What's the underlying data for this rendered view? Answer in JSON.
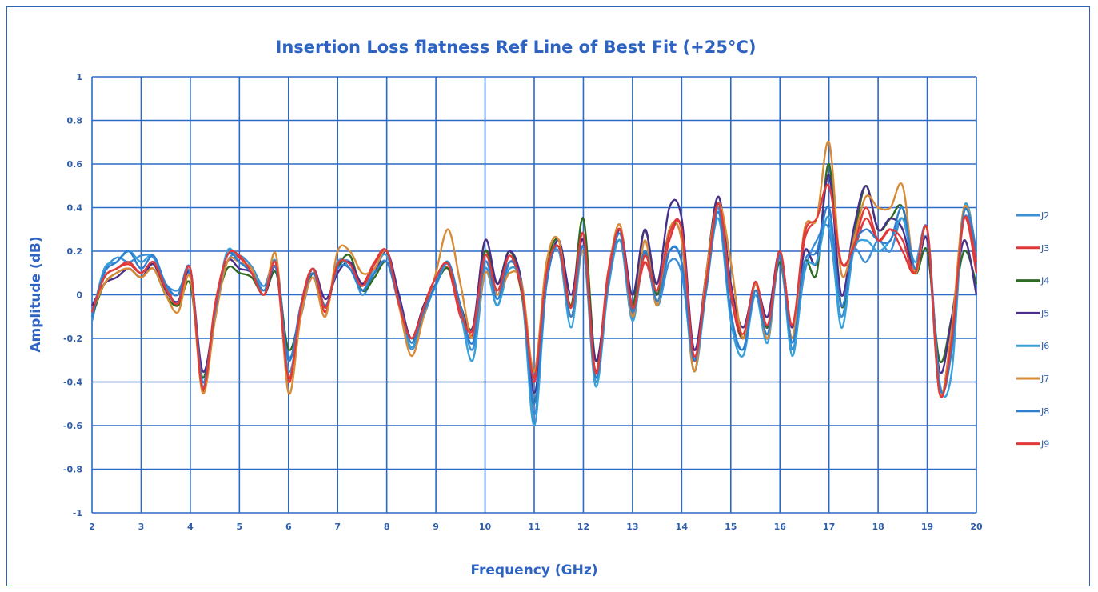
{
  "chart_data": {
    "type": "line",
    "title": "Insertion Loss flatness Ref Line of Best Fit (+25°C)",
    "xlabel": "Frequency (GHz)",
    "ylabel": "Amplitude (dB)",
    "xlim": [
      2,
      20
    ],
    "ylim": [
      -1,
      1
    ],
    "x_ticks": [
      "2",
      "3",
      "4",
      "5",
      "6",
      "7",
      "8",
      "9",
      "10",
      "11",
      "12",
      "13",
      "14",
      "15",
      "16",
      "17",
      "18",
      "19",
      "20"
    ],
    "y_ticks": [
      "1",
      "0.8",
      "0.6",
      "0.4",
      "0.2",
      "0",
      "-0.2",
      "-0.4",
      "-0.6",
      "-0.8",
      "-1"
    ],
    "grid": true,
    "legend_position": "right",
    "x": [
      2.0,
      2.25,
      2.5,
      2.75,
      3.0,
      3.25,
      3.5,
      3.75,
      4.0,
      4.25,
      4.5,
      4.75,
      5.0,
      5.25,
      5.5,
      5.75,
      6.0,
      6.25,
      6.5,
      6.75,
      7.0,
      7.25,
      7.5,
      7.75,
      8.0,
      8.25,
      8.5,
      8.75,
      9.0,
      9.25,
      9.5,
      9.75,
      10.0,
      10.25,
      10.5,
      10.75,
      11.0,
      11.25,
      11.5,
      11.75,
      12.0,
      12.25,
      12.5,
      12.75,
      13.0,
      13.25,
      13.5,
      13.75,
      14.0,
      14.25,
      14.5,
      14.75,
      15.0,
      15.25,
      15.5,
      15.75,
      16.0,
      16.25,
      16.5,
      16.75,
      17.0,
      17.25,
      17.5,
      17.75,
      18.0,
      18.25,
      18.5,
      18.75,
      19.0,
      19.25,
      19.5,
      19.75,
      20.0
    ],
    "series": [
      {
        "name": "J2",
        "color": "#3d8fd6",
        "values": [
          -0.12,
          0.1,
          0.17,
          0.15,
          0.18,
          0.17,
          0.05,
          0.02,
          0.08,
          -0.42,
          -0.1,
          0.15,
          0.18,
          0.13,
          0.04,
          0.15,
          -0.28,
          -0.1,
          0.1,
          -0.05,
          0.12,
          0.15,
          0.0,
          0.1,
          0.15,
          -0.05,
          -0.25,
          -0.1,
          0.05,
          0.15,
          -0.05,
          -0.25,
          0.12,
          -0.05,
          0.15,
          0.05,
          -0.55,
          0.05,
          0.22,
          -0.1,
          0.22,
          -0.4,
          0.05,
          0.3,
          -0.1,
          0.2,
          -0.05,
          0.15,
          0.1,
          -0.3,
          0.02,
          0.4,
          -0.1,
          -0.25,
          0.0,
          -0.2,
          0.18,
          -0.25,
          0.1,
          0.25,
          0.3,
          -0.1,
          0.2,
          0.15,
          0.25,
          0.2,
          0.35,
          0.1,
          0.25,
          -0.45,
          -0.2,
          0.35,
          0.2
        ]
      },
      {
        "name": "J3",
        "color": "#e03838",
        "values": [
          -0.08,
          0.08,
          0.12,
          0.14,
          0.1,
          0.15,
          0.05,
          -0.05,
          0.12,
          -0.44,
          -0.05,
          0.18,
          0.17,
          0.1,
          0.0,
          0.12,
          -0.4,
          -0.05,
          0.12,
          -0.08,
          0.15,
          0.12,
          0.05,
          0.15,
          0.2,
          -0.05,
          -0.2,
          -0.05,
          0.08,
          0.12,
          -0.1,
          -0.18,
          0.2,
          0.0,
          0.18,
          0.0,
          -0.4,
          0.1,
          0.2,
          -0.05,
          0.25,
          -0.35,
          0.1,
          0.3,
          -0.05,
          0.15,
          0.0,
          0.25,
          0.3,
          -0.3,
          0.05,
          0.42,
          0.0,
          -0.2,
          0.05,
          -0.15,
          0.2,
          -0.15,
          0.25,
          0.35,
          0.5,
          0.15,
          0.2,
          0.35,
          0.25,
          0.3,
          0.2,
          0.1,
          0.3,
          -0.45,
          -0.15,
          0.35,
          0.1
        ]
      },
      {
        "name": "J4",
        "color": "#2e6b24",
        "values": [
          -0.1,
          0.05,
          0.1,
          0.12,
          0.08,
          0.12,
          0.0,
          -0.05,
          0.05,
          -0.38,
          -0.08,
          0.12,
          0.1,
          0.08,
          0.0,
          0.1,
          -0.25,
          -0.08,
          0.1,
          -0.05,
          0.12,
          0.18,
          0.02,
          0.08,
          0.15,
          -0.02,
          -0.22,
          -0.05,
          0.05,
          0.12,
          -0.05,
          -0.15,
          0.2,
          0.05,
          0.2,
          0.0,
          -0.5,
          0.1,
          0.25,
          -0.05,
          0.35,
          -0.3,
          0.05,
          0.25,
          -0.05,
          0.3,
          0.0,
          0.3,
          0.25,
          -0.35,
          0.1,
          0.45,
          0.05,
          -0.2,
          0.05,
          -0.15,
          0.15,
          -0.2,
          0.15,
          0.1,
          0.6,
          -0.05,
          0.25,
          0.5,
          0.3,
          0.35,
          0.4,
          0.1,
          0.2,
          -0.3,
          -0.1,
          0.2,
          0.05
        ]
      },
      {
        "name": "J5",
        "color": "#4a2f8a",
        "values": [
          -0.05,
          0.05,
          0.08,
          0.12,
          0.08,
          0.14,
          0.02,
          -0.03,
          0.1,
          -0.35,
          -0.1,
          0.15,
          0.12,
          0.1,
          0.0,
          0.12,
          -0.3,
          -0.05,
          0.12,
          -0.02,
          0.1,
          0.15,
          0.05,
          0.1,
          0.2,
          0.0,
          -0.2,
          -0.05,
          0.05,
          0.15,
          -0.05,
          -0.15,
          0.25,
          0.05,
          0.2,
          0.05,
          -0.45,
          0.05,
          0.25,
          0.0,
          0.25,
          -0.3,
          0.05,
          0.3,
          0.0,
          0.3,
          0.05,
          0.4,
          0.35,
          -0.25,
          0.1,
          0.45,
          0.05,
          -0.15,
          0.05,
          -0.1,
          0.2,
          -0.15,
          0.2,
          0.15,
          0.55,
          0.0,
          0.3,
          0.5,
          0.3,
          0.35,
          0.3,
          0.1,
          0.25,
          -0.35,
          -0.1,
          0.25,
          0.0
        ]
      },
      {
        "name": "J6",
        "color": "#38a0d8",
        "values": [
          -0.1,
          0.12,
          0.15,
          0.2,
          0.15,
          0.18,
          0.04,
          0.0,
          0.1,
          -0.42,
          -0.1,
          0.2,
          0.15,
          0.12,
          0.02,
          0.14,
          -0.35,
          -0.08,
          0.12,
          -0.06,
          0.15,
          0.12,
          0.02,
          0.12,
          0.18,
          -0.04,
          -0.24,
          -0.08,
          0.04,
          0.14,
          -0.08,
          -0.3,
          0.1,
          -0.05,
          0.12,
          0.02,
          -0.6,
          0.05,
          0.2,
          -0.15,
          0.2,
          -0.42,
          0.02,
          0.25,
          -0.12,
          0.2,
          -0.05,
          0.2,
          0.15,
          -0.35,
          0.02,
          0.35,
          -0.12,
          -0.28,
          0.0,
          -0.22,
          0.18,
          -0.28,
          0.12,
          0.15,
          0.35,
          -0.15,
          0.2,
          0.25,
          0.2,
          0.25,
          0.35,
          0.15,
          0.3,
          -0.4,
          -0.35,
          0.4,
          0.2
        ]
      },
      {
        "name": "J7",
        "color": "#d98a35",
        "values": [
          -0.08,
          0.05,
          0.1,
          0.12,
          0.08,
          0.12,
          0.0,
          -0.08,
          0.08,
          -0.45,
          -0.12,
          0.15,
          0.15,
          0.12,
          0.0,
          0.18,
          -0.45,
          -0.1,
          0.08,
          -0.1,
          0.2,
          0.2,
          0.1,
          0.12,
          0.2,
          -0.05,
          -0.28,
          -0.1,
          0.1,
          0.3,
          0.05,
          -0.2,
          0.1,
          0.0,
          0.1,
          0.05,
          -0.35,
          0.15,
          0.25,
          -0.1,
          0.2,
          -0.38,
          0.08,
          0.32,
          -0.1,
          0.25,
          -0.05,
          0.3,
          0.25,
          -0.35,
          0.1,
          0.42,
          0.15,
          -0.2,
          0.05,
          -0.2,
          0.2,
          -0.2,
          0.3,
          0.35,
          0.7,
          0.1,
          0.25,
          0.45,
          0.4,
          0.4,
          0.5,
          0.1,
          0.3,
          -0.45,
          -0.15,
          0.4,
          0.2
        ]
      },
      {
        "name": "J8",
        "color": "#2f7fd0",
        "values": [
          -0.1,
          0.1,
          0.15,
          0.2,
          0.12,
          0.18,
          0.05,
          0.0,
          0.12,
          -0.4,
          -0.08,
          0.18,
          0.15,
          0.1,
          0.02,
          0.12,
          -0.3,
          -0.05,
          0.1,
          -0.05,
          0.12,
          0.12,
          0.02,
          0.1,
          0.15,
          -0.03,
          -0.22,
          -0.08,
          0.05,
          0.15,
          -0.05,
          -0.22,
          0.15,
          -0.02,
          0.15,
          0.03,
          -0.5,
          0.05,
          0.22,
          -0.1,
          0.22,
          -0.38,
          0.05,
          0.28,
          -0.08,
          0.2,
          -0.03,
          0.2,
          0.15,
          -0.3,
          0.03,
          0.38,
          -0.08,
          -0.25,
          0.02,
          -0.18,
          0.18,
          -0.22,
          0.15,
          0.2,
          0.4,
          -0.05,
          0.22,
          0.3,
          0.25,
          0.25,
          0.4,
          0.12,
          0.3,
          -0.42,
          -0.25,
          0.38,
          0.2
        ]
      },
      {
        "name": "J9",
        "color": "#e03a3a",
        "values": [
          -0.08,
          0.08,
          0.12,
          0.15,
          0.1,
          0.15,
          0.03,
          -0.04,
          0.12,
          -0.43,
          -0.06,
          0.18,
          0.18,
          0.1,
          0.0,
          0.14,
          -0.38,
          -0.06,
          0.12,
          -0.06,
          0.14,
          0.14,
          0.04,
          0.14,
          0.2,
          -0.04,
          -0.2,
          -0.06,
          0.08,
          0.14,
          -0.08,
          -0.16,
          0.18,
          0.02,
          0.18,
          0.02,
          -0.38,
          0.1,
          0.22,
          -0.06,
          0.28,
          -0.36,
          0.08,
          0.3,
          -0.06,
          0.18,
          0.02,
          0.28,
          0.3,
          -0.28,
          0.06,
          0.42,
          0.02,
          -0.18,
          0.06,
          -0.14,
          0.2,
          -0.14,
          0.28,
          0.35,
          0.5,
          0.15,
          0.22,
          0.4,
          0.25,
          0.3,
          0.25,
          0.1,
          0.3,
          -0.45,
          -0.2,
          0.35,
          0.15
        ]
      }
    ]
  }
}
